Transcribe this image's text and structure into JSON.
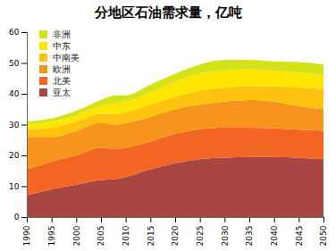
{
  "chart_data": {
    "type": "area",
    "title": "分地区石油需求量，亿吨",
    "stacked": true,
    "legend": "top-left",
    "x": [
      1990,
      1995,
      2000,
      2005,
      2008,
      2010,
      2015,
      2020,
      2025,
      2030,
      2035,
      2040,
      2045,
      2050
    ],
    "xlim": [
      1990,
      2050
    ],
    "xticks": [
      1990,
      1995,
      2000,
      2005,
      2010,
      2015,
      2020,
      2025,
      2030,
      2035,
      2040,
      2045,
      2050
    ],
    "ylim": [
      0,
      60
    ],
    "yticks": [
      0,
      10,
      20,
      30,
      40,
      50,
      60
    ],
    "grid": false,
    "series": [
      {
        "name": "亚太",
        "color": "#a84643",
        "values": [
          7,
          9,
          10.5,
          12,
          12.3,
          13,
          15.5,
          17.5,
          18.8,
          19.3,
          19.5,
          19.5,
          19.2,
          18.8
        ]
      },
      {
        "name": "北美",
        "color": "#f26522",
        "values": [
          8.5,
          9,
          9.5,
          10.5,
          9.7,
          9.5,
          9,
          9.5,
          9.7,
          9.7,
          9.5,
          9.3,
          9.1,
          9.2
        ]
      },
      {
        "name": "欧洲",
        "color": "#f7941d",
        "values": [
          10.5,
          8,
          8,
          8,
          8,
          8,
          8,
          8,
          8,
          8.5,
          9,
          8.7,
          7.7,
          7
        ]
      },
      {
        "name": "中南美",
        "color": "#ffc20e",
        "values": [
          2.5,
          3,
          3,
          3,
          3.5,
          3.5,
          4,
          4,
          4.5,
          4.5,
          4.5,
          5,
          6,
          6.5
        ]
      },
      {
        "name": "中东",
        "color": "#ffe600",
        "values": [
          1.5,
          2,
          2,
          2.5,
          3.5,
          3.5,
          4,
          5,
          5.5,
          5.5,
          5.5,
          5,
          5,
          4.5
        ]
      },
      {
        "name": "非洲",
        "color": "#d4e21a",
        "values": [
          1,
          1,
          1.5,
          2,
          2.5,
          2,
          2.5,
          2.5,
          3,
          3.5,
          3,
          3,
          3.3,
          3.5
        ]
      }
    ]
  }
}
